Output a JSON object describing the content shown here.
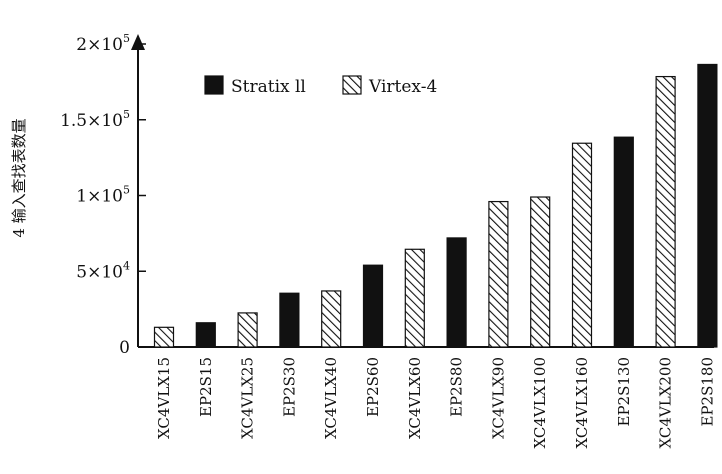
{
  "chart_data": {
    "type": "bar",
    "title": "",
    "xlabel": "",
    "ylabel": "4 输入查找表数量",
    "ylim": [
      0,
      200000
    ],
    "y_ticks": [
      {
        "value": 0,
        "label": "0"
      },
      {
        "value": 50000,
        "label": "5×10",
        "exp": "4"
      },
      {
        "value": 100000,
        "label": "1×10",
        "exp": "5"
      },
      {
        "value": 150000,
        "label": "1.5×10",
        "exp": "5"
      },
      {
        "value": 200000,
        "label": "2×10",
        "exp": "5"
      }
    ],
    "legend_position": "top-left",
    "series_names": [
      "Stratix ll",
      "Virtex-4"
    ],
    "series_colors": {
      "Stratix ll": "#111111",
      "Virtex-4": "hatched"
    },
    "bars": [
      {
        "category": "XC4VLX15",
        "series": "Virtex-4",
        "value": 13000
      },
      {
        "category": "EP2S15",
        "series": "Stratix ll",
        "value": 16000
      },
      {
        "category": "XC4VLX25",
        "series": "Virtex-4",
        "value": 22500
      },
      {
        "category": "EP2S30",
        "series": "Stratix ll",
        "value": 35500
      },
      {
        "category": "XC4VLX40",
        "series": "Virtex-4",
        "value": 37000
      },
      {
        "category": "EP2S60",
        "series": "Stratix ll",
        "value": 54000
      },
      {
        "category": "XC4VLX60",
        "series": "Virtex-4",
        "value": 64500
      },
      {
        "category": "EP2S80",
        "series": "Stratix ll",
        "value": 72000
      },
      {
        "category": "XC4VLX90",
        "series": "Virtex-4",
        "value": 96000
      },
      {
        "category": "XC4VLX100",
        "series": "Virtex-4",
        "value": 99000
      },
      {
        "category": "XC4VLX160",
        "series": "Virtex-4",
        "value": 134500
      },
      {
        "category": "EP2S130",
        "series": "Stratix ll",
        "value": 138500
      },
      {
        "category": "XC4VLX200",
        "series": "Virtex-4",
        "value": 178500
      },
      {
        "category": "EP2S180",
        "series": "Stratix ll",
        "value": 186500
      }
    ]
  }
}
